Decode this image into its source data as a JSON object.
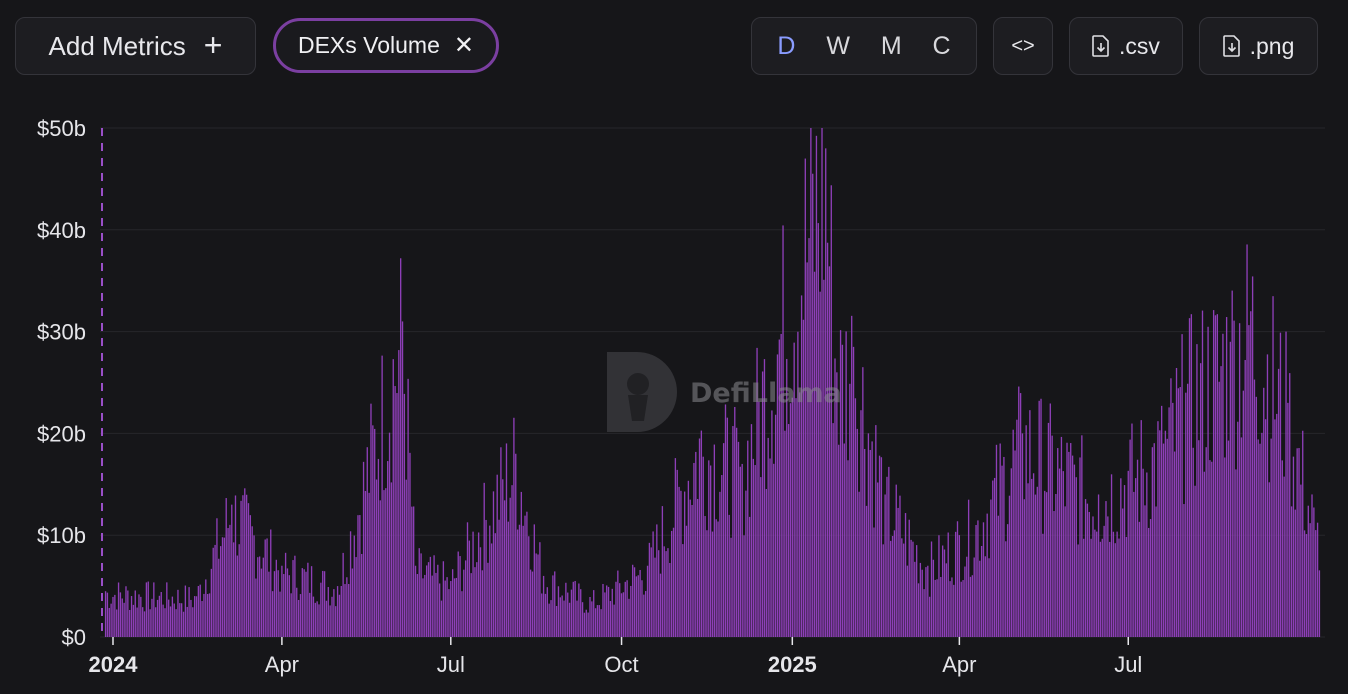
{
  "toolbar": {
    "add_metrics_label": "Add Metrics",
    "add_icon": "plus-icon",
    "metric_tag_label": "DEXs Volume",
    "remove_icon": "close-icon",
    "groupings": [
      "D",
      "W",
      "M",
      "C"
    ],
    "active_grouping": "D",
    "embed_icon": "code-icon",
    "csv_label": ".csv",
    "png_label": ".png",
    "download_icon": "file-download-icon"
  },
  "watermark": {
    "text": "DefiLlama"
  },
  "colors": {
    "bar": "#8e3fb8",
    "background": "#161619",
    "active": "#8a9cff",
    "tag_border": "#7b3fa1"
  },
  "chart_data": {
    "type": "bar",
    "series": [
      {
        "name": "DEXs Volume"
      }
    ],
    "x_ticks": [
      "2024",
      "Apr",
      "Jul",
      "Oct",
      "2025",
      "Apr",
      "Jul"
    ],
    "y_ticks": [
      "$0",
      "$10b",
      "$20b",
      "$30b",
      "$40b",
      "$50b"
    ],
    "ylim": [
      0,
      50
    ],
    "y_unit": "billion USD",
    "grid": true,
    "key_points": [
      {
        "date": "2023-12-28",
        "value": 4.5
      },
      {
        "date": "2024-02-15",
        "value": 4.0
      },
      {
        "date": "2024-03-05",
        "value": 13.0
      },
      {
        "date": "2024-04-01",
        "value": 7.0
      },
      {
        "date": "2024-05-01",
        "value": 5.0
      },
      {
        "date": "2024-06-05",
        "value": 31.0
      },
      {
        "date": "2024-06-12",
        "value": 7.0
      },
      {
        "date": "2024-07-01",
        "value": 5.5
      },
      {
        "date": "2024-08-05",
        "value": 18.0
      },
      {
        "date": "2024-08-20",
        "value": 6.0
      },
      {
        "date": "2024-09-15",
        "value": 3.5
      },
      {
        "date": "2024-10-15",
        "value": 7.0
      },
      {
        "date": "2024-11-12",
        "value": 19.5
      },
      {
        "date": "2024-12-05",
        "value": 17.0
      },
      {
        "date": "2025-01-19",
        "value": 48.0
      },
      {
        "date": "2025-01-25",
        "value": 26.0
      },
      {
        "date": "2025-02-03",
        "value": 28.5
      },
      {
        "date": "2025-02-20",
        "value": 14.0
      },
      {
        "date": "2025-03-15",
        "value": 7.0
      },
      {
        "date": "2025-04-10",
        "value": 11.0
      },
      {
        "date": "2025-05-05",
        "value": 20.0
      },
      {
        "date": "2025-06-15",
        "value": 14.0
      },
      {
        "date": "2025-07-20",
        "value": 19.0
      },
      {
        "date": "2025-08-01",
        "value": 24.0
      },
      {
        "date": "2025-08-25",
        "value": 29.0
      },
      {
        "date": "2025-09-05",
        "value": 32.0
      },
      {
        "date": "2025-09-25",
        "value": 23.0
      },
      {
        "date": "2025-10-10",
        "value": 10.5
      }
    ]
  }
}
